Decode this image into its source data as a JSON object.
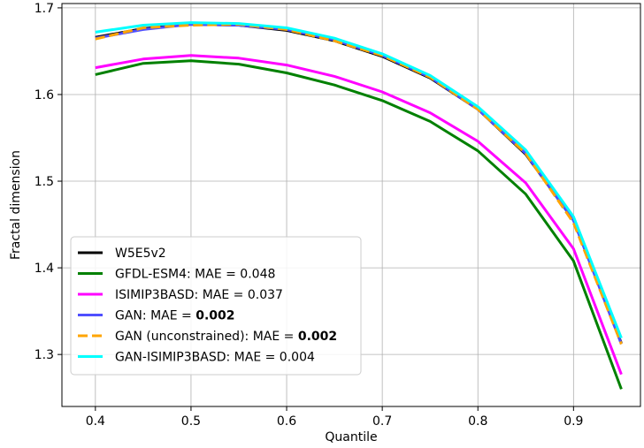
{
  "chart_data": {
    "type": "line",
    "xlabel": "Quantile",
    "ylabel": "Fractal dimension",
    "xlim": [
      0.365,
      0.97
    ],
    "ylim": [
      1.24,
      1.705
    ],
    "xticks": [
      0.4,
      0.5,
      0.6,
      0.7,
      0.8,
      0.9
    ],
    "xtick_labels": [
      "0.4",
      "0.5",
      "0.6",
      "0.7",
      "0.8",
      "0.9"
    ],
    "yticks": [
      1.3,
      1.4,
      1.5,
      1.6,
      1.7
    ],
    "ytick_labels": [
      "1.3",
      "1.4",
      "1.5",
      "1.6",
      "1.7"
    ],
    "grid": true,
    "legend_position": "lower-left",
    "x": [
      0.4,
      0.45,
      0.5,
      0.55,
      0.6,
      0.65,
      0.7,
      0.75,
      0.8,
      0.85,
      0.9,
      0.95
    ],
    "series": [
      {
        "name": "W5E5v2",
        "color": "#000000",
        "dash": "solid",
        "width": 3,
        "legend_parts": [
          {
            "text": "W5E5v2",
            "bold": false
          }
        ],
        "values": [
          1.666,
          1.676,
          1.681,
          1.68,
          1.674,
          1.662,
          1.644,
          1.619,
          1.583,
          1.531,
          1.455,
          1.313
        ]
      },
      {
        "name": "GFDL-ESM4: MAE = 0.048",
        "color": "#008000",
        "dash": "solid",
        "width": 3,
        "legend_parts": [
          {
            "text": "GFDL-ESM4: MAE = 0.048",
            "bold": false
          }
        ],
        "values": [
          1.623,
          1.636,
          1.639,
          1.635,
          1.625,
          1.611,
          1.593,
          1.569,
          1.535,
          1.485,
          1.408,
          1.26
        ]
      },
      {
        "name": "ISIMIP3BASD: MAE = 0.037",
        "color": "#ff00ff",
        "dash": "solid",
        "width": 3,
        "legend_parts": [
          {
            "text": "ISIMIP3BASD: MAE = 0.037",
            "bold": false
          }
        ],
        "values": [
          1.631,
          1.641,
          1.645,
          1.642,
          1.634,
          1.621,
          1.603,
          1.579,
          1.546,
          1.498,
          1.422,
          1.277
        ]
      },
      {
        "name": "GAN: MAE = 0.002",
        "color": "#4f4fff",
        "dash": "solid",
        "width": 3,
        "legend_parts": [
          {
            "text": "GAN: MAE = ",
            "bold": false
          },
          {
            "text": "0.002",
            "bold": true
          }
        ],
        "values": [
          1.665,
          1.675,
          1.681,
          1.68,
          1.675,
          1.663,
          1.645,
          1.62,
          1.583,
          1.532,
          1.455,
          1.312
        ]
      },
      {
        "name": "GAN (unconstrained): MAE = 0.002",
        "color": "#ffa500",
        "dash": "dashed",
        "width": 3,
        "legend_parts": [
          {
            "text": "GAN (unconstrained): MAE = ",
            "bold": false
          },
          {
            "text": "0.002",
            "bold": true
          }
        ],
        "values": [
          1.664,
          1.677,
          1.68,
          1.681,
          1.675,
          1.662,
          1.645,
          1.62,
          1.583,
          1.532,
          1.452,
          1.312
        ]
      },
      {
        "name": "GAN-ISIMIP3BASD: MAE = 0.004",
        "color": "#00ffff",
        "dash": "solid",
        "width": 3,
        "legend_parts": [
          {
            "text": "GAN-ISIMIP3BASD: MAE = 0.004",
            "bold": false
          }
        ],
        "values": [
          1.672,
          1.68,
          1.683,
          1.682,
          1.677,
          1.665,
          1.647,
          1.622,
          1.586,
          1.536,
          1.459,
          1.319
        ]
      }
    ]
  }
}
